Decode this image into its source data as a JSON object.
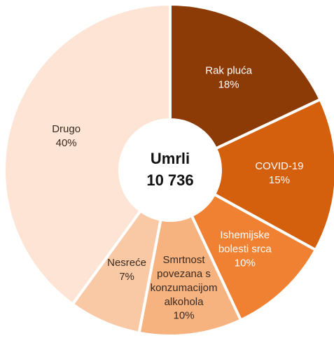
{
  "chart_data": {
    "type": "donut",
    "center_title": "Umrli",
    "center_value": "10 736",
    "categories": [
      "Rak pluća",
      "COVID-19",
      "Ishemijske\nbolesti srca",
      "Smrtnost\npovezana s\nkonzumacijom\nalkohola",
      "Nesreće",
      "Drugo"
    ],
    "values": [
      18,
      15,
      10,
      10,
      7,
      40
    ],
    "value_labels": [
      "18%",
      "15%",
      "10%",
      "10%",
      "7%",
      "40%"
    ],
    "colors": [
      "#8c3a06",
      "#d45f0d",
      "#f08132",
      "#f6b27f",
      "#f9c9a6",
      "#fde4d4"
    ]
  }
}
